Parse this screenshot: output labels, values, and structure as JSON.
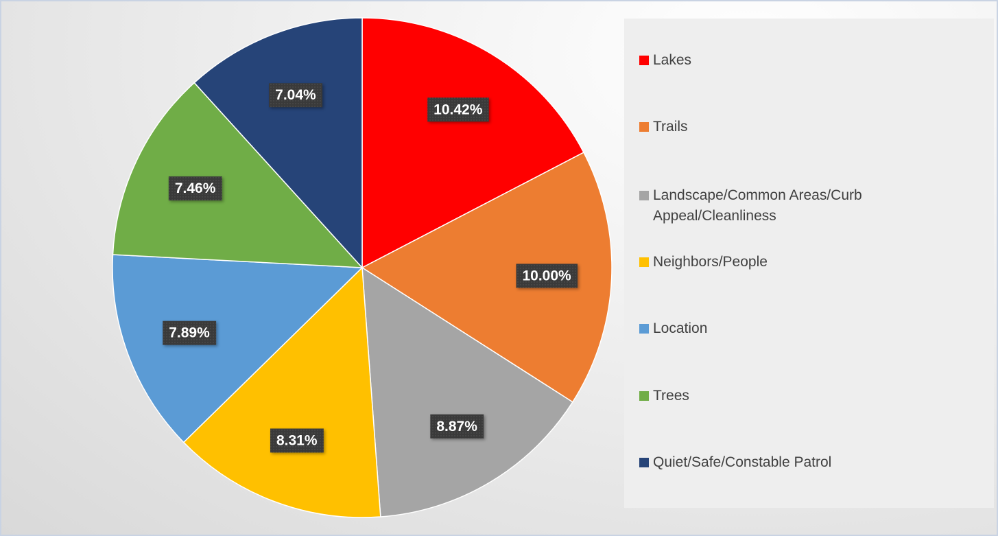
{
  "chart_data": {
    "type": "pie",
    "categories": [
      "Lakes",
      "Trails",
      "Landscape/Common Areas/Curb Appeal/Cleanliness",
      "Neighbors/People",
      "Location",
      "Trees",
      "Quiet/Safe/Constable Patrol"
    ],
    "values": [
      10.42,
      10.0,
      8.87,
      8.31,
      7.89,
      7.46,
      7.04
    ],
    "value_labels": [
      "10.42%",
      "10.00%",
      "8.87%",
      "8.31%",
      "7.89%",
      "7.46%",
      "7.04%"
    ],
    "colors": [
      "#ff0000",
      "#ed7d31",
      "#a5a5a5",
      "#ffc000",
      "#5b9bd5",
      "#70ad47",
      "#264478"
    ],
    "legend": "right"
  }
}
